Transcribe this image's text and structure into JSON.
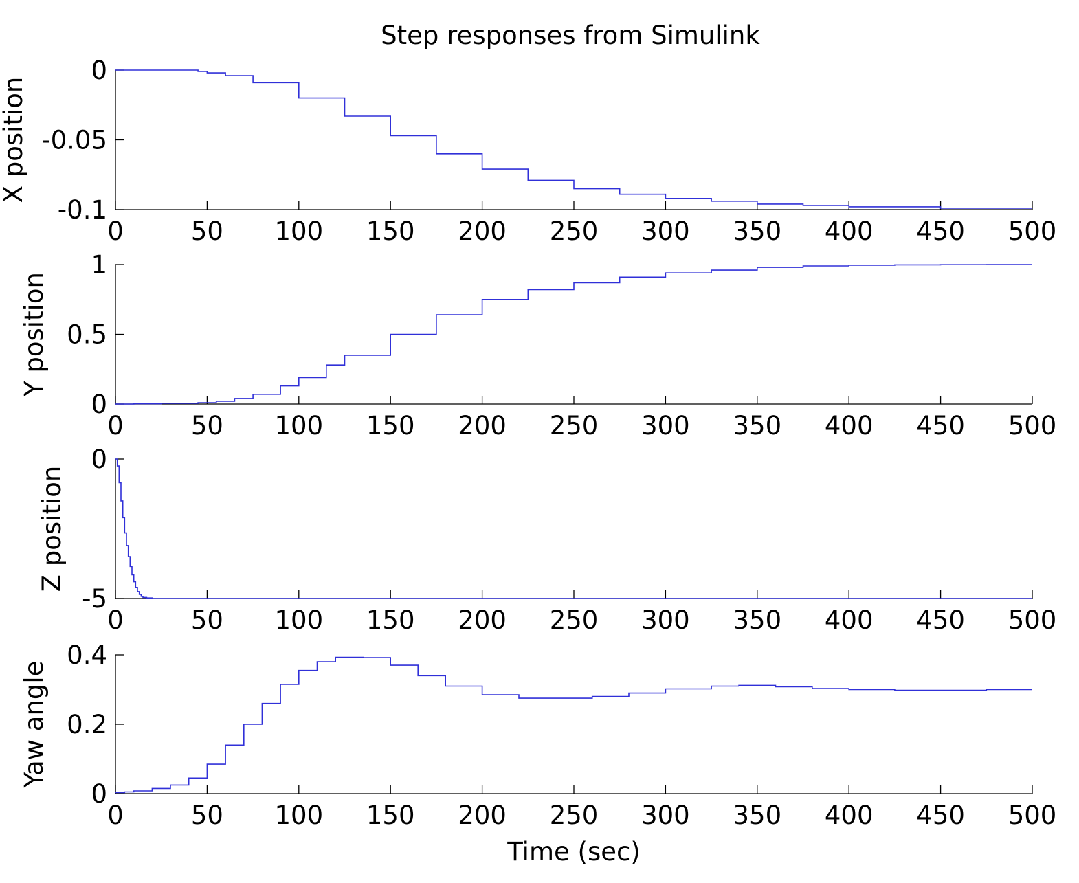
{
  "chart_data": [
    {
      "type": "line",
      "title": "Step responses from Simulink",
      "xlabel": "",
      "ylabel": "X position",
      "xlim": [
        0,
        500
      ],
      "ylim": [
        -0.1,
        0
      ],
      "x_ticks": [
        "0",
        "50",
        "100",
        "150",
        "200",
        "250",
        "300",
        "350",
        "400",
        "450",
        "500"
      ],
      "y_ticks": [
        "0",
        "-0.05",
        "-0.1"
      ],
      "y_tick_values": [
        0,
        -0.05,
        -0.1
      ],
      "grid": false,
      "series_color": "#3030d8",
      "series": [
        {
          "x": [
            0,
            20,
            35,
            45,
            50,
            60,
            75,
            100,
            125,
            150,
            175,
            200,
            225,
            250,
            275,
            300,
            325,
            350,
            375,
            400,
            425,
            450,
            475,
            500
          ],
          "y": [
            0,
            0,
            0,
            -0.001,
            -0.002,
            -0.004,
            -0.009,
            -0.02,
            -0.033,
            -0.047,
            -0.06,
            -0.071,
            -0.079,
            -0.085,
            -0.089,
            -0.092,
            -0.094,
            -0.096,
            -0.097,
            -0.098,
            -0.098,
            -0.099,
            -0.099,
            -0.099
          ]
        }
      ]
    },
    {
      "type": "line",
      "xlabel": "",
      "ylabel": "Y position",
      "xlim": [
        0,
        500
      ],
      "ylim": [
        0,
        1
      ],
      "x_ticks": [
        "0",
        "50",
        "100",
        "150",
        "200",
        "250",
        "300",
        "350",
        "400",
        "450",
        "500"
      ],
      "y_ticks": [
        "1",
        "0.5",
        "0"
      ],
      "y_tick_values": [
        1,
        0.5,
        0
      ],
      "grid": false,
      "series_color": "#3030d8",
      "series": [
        {
          "x": [
            0,
            10,
            25,
            45,
            55,
            65,
            75,
            90,
            100,
            115,
            125,
            150,
            175,
            200,
            225,
            250,
            275,
            300,
            325,
            350,
            375,
            400,
            425,
            450,
            475,
            500
          ],
          "y": [
            0,
            0.002,
            0.005,
            0.01,
            0.02,
            0.04,
            0.07,
            0.13,
            0.19,
            0.28,
            0.35,
            0.5,
            0.64,
            0.75,
            0.82,
            0.87,
            0.91,
            0.94,
            0.96,
            0.98,
            0.99,
            0.995,
            0.998,
            0.999,
            1.0,
            1.0
          ]
        }
      ]
    },
    {
      "type": "line",
      "xlabel": "",
      "ylabel": "Z position",
      "xlim": [
        0,
        500
      ],
      "ylim": [
        -5,
        0
      ],
      "x_ticks": [
        "0",
        "50",
        "100",
        "150",
        "200",
        "250",
        "300",
        "350",
        "400",
        "450",
        "500"
      ],
      "y_ticks": [
        "0",
        "-5"
      ],
      "y_tick_values": [
        0,
        -5
      ],
      "grid": false,
      "series_color": "#3030d8",
      "series": [
        {
          "x": [
            0,
            1,
            2,
            3,
            4,
            5,
            6,
            7,
            8,
            9,
            10,
            11,
            12,
            13,
            14,
            15,
            17,
            20,
            30,
            50,
            100,
            200,
            300,
            400,
            500
          ],
          "y": [
            0,
            -0.25,
            -0.85,
            -1.5,
            -2.1,
            -2.65,
            -3.1,
            -3.5,
            -3.85,
            -4.15,
            -4.4,
            -4.6,
            -4.75,
            -4.85,
            -4.92,
            -4.96,
            -4.98,
            -5,
            -5,
            -5,
            -5,
            -5,
            -5,
            -5,
            -5
          ]
        }
      ]
    },
    {
      "type": "line",
      "xlabel": "Time (sec)",
      "ylabel": "Yaw angle",
      "xlim": [
        0,
        500
      ],
      "ylim": [
        0,
        0.4
      ],
      "x_ticks": [
        "0",
        "50",
        "100",
        "150",
        "200",
        "250",
        "300",
        "350",
        "400",
        "450",
        "500"
      ],
      "y_ticks": [
        "0.4",
        "0.2",
        "0"
      ],
      "y_tick_values": [
        0.4,
        0.2,
        0
      ],
      "grid": false,
      "series_color": "#3030d8",
      "series": [
        {
          "x": [
            0,
            5,
            10,
            20,
            30,
            40,
            50,
            60,
            70,
            80,
            90,
            100,
            110,
            120,
            135,
            150,
            165,
            180,
            200,
            220,
            240,
            260,
            280,
            300,
            325,
            340,
            360,
            380,
            400,
            425,
            450,
            475,
            500
          ],
          "y": [
            0.003,
            0.005,
            0.008,
            0.015,
            0.025,
            0.045,
            0.085,
            0.14,
            0.2,
            0.26,
            0.315,
            0.355,
            0.38,
            0.393,
            0.392,
            0.37,
            0.34,
            0.31,
            0.285,
            0.275,
            0.275,
            0.28,
            0.29,
            0.302,
            0.31,
            0.312,
            0.308,
            0.303,
            0.3,
            0.298,
            0.298,
            0.3,
            0.3
          ]
        }
      ]
    }
  ]
}
